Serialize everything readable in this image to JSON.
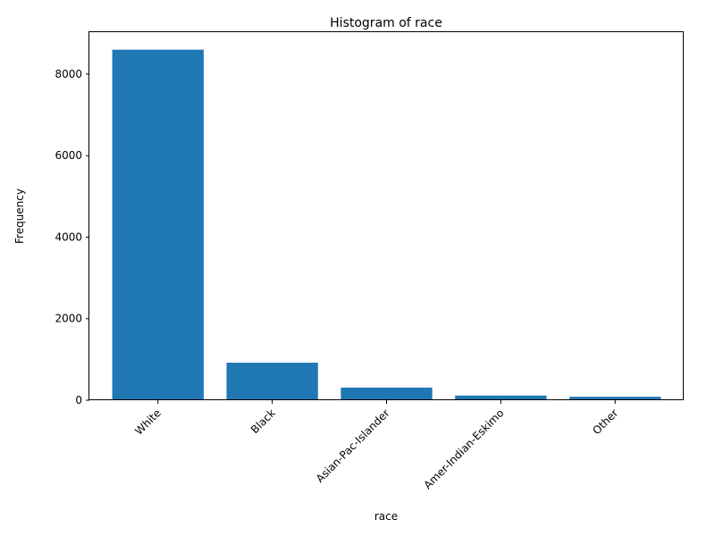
{
  "chart_data": {
    "type": "bar",
    "title": "Histogram of race",
    "xlabel": "race",
    "ylabel": "Frequency",
    "categories": [
      "White",
      "Black",
      "Asian-Pac-Islander",
      "Amer-Indian-Eskimo",
      "Other"
    ],
    "values": [
      8600,
      920,
      310,
      115,
      85
    ],
    "ylim": [
      0,
      9030
    ],
    "yticks": [
      0,
      2000,
      4000,
      6000,
      8000
    ],
    "ytick_labels": [
      "0",
      "2000",
      "4000",
      "6000",
      "8000"
    ],
    "grid": false,
    "bar_color": "#1f77b4"
  }
}
